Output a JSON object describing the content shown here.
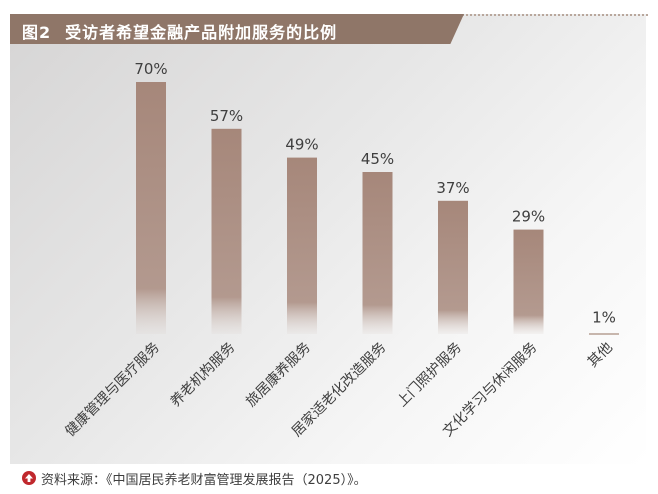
{
  "header": {
    "figure_label": "图2",
    "title": "受访者希望金融产品附加服务的比例"
  },
  "source": {
    "icon": "up-arrow-icon",
    "text": "资料来源：《中国居民养老财富管理发展报告（2025）》。"
  },
  "chart_data": {
    "type": "bar",
    "title": "受访者希望金融产品附加服务的比例",
    "categories": [
      "健康管理与医疗服务",
      "养老机构服务",
      "旅居康养服务",
      "居家适老化改造服务",
      "上门照护服务",
      "文化学习与休闲服务",
      "其他"
    ],
    "values": [
      70,
      57,
      49,
      45,
      37,
      29,
      1
    ],
    "value_labels": [
      "70%",
      "57%",
      "49%",
      "45%",
      "37%",
      "29%",
      "1%"
    ],
    "unit": "%",
    "ylim": [
      0,
      100
    ],
    "grid": false,
    "legend": "none",
    "bar_color": "#a6877a",
    "label_color": "#3f3f3f"
  }
}
